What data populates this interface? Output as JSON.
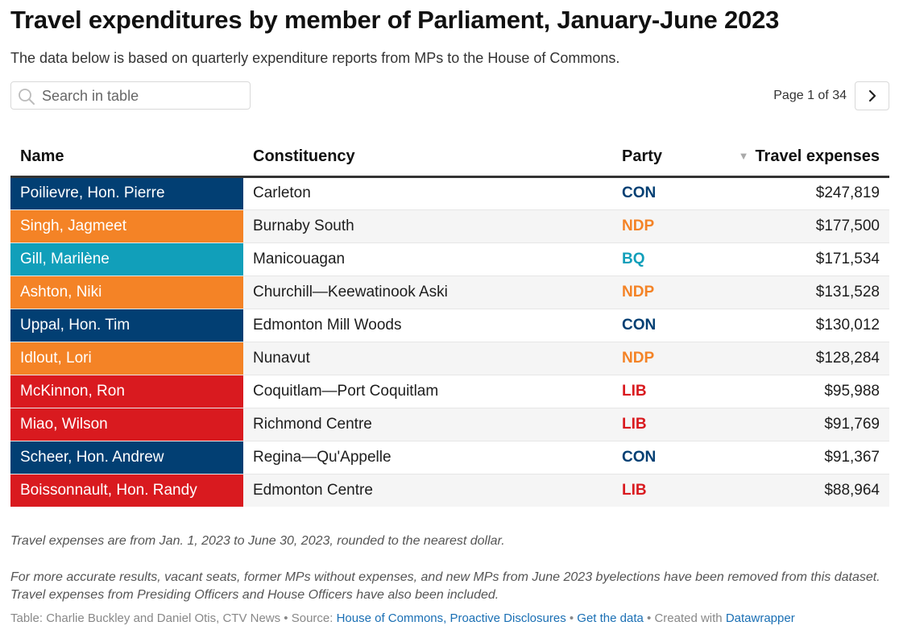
{
  "title": "Travel expenditures by member of Parliament, January-June 2023",
  "subtitle": "The data below is based on quarterly expenditure reports from MPs to the House of Commons.",
  "search": {
    "placeholder": "Search in table",
    "value": ""
  },
  "pagination": {
    "text": "Page 1 of 34",
    "current": 1,
    "total": 34
  },
  "columns": {
    "name": "Name",
    "constituency": "Constituency",
    "party": "Party",
    "expenses": "Travel expenses"
  },
  "sort": {
    "column": "expenses",
    "direction": "descending",
    "icon": "triangle-down-icon"
  },
  "party_colors": {
    "CON": "#023f73",
    "NDP": "#f48326",
    "BQ": "#119fba",
    "LIB": "#d91a1f"
  },
  "rows": [
    {
      "name": "Poilievre, Hon. Pierre",
      "constituency": "Carleton",
      "party": "CON",
      "expenses": "$247,819"
    },
    {
      "name": "Singh, Jagmeet",
      "constituency": "Burnaby South",
      "party": "NDP",
      "expenses": "$177,500"
    },
    {
      "name": "Gill, Marilène",
      "constituency": "Manicouagan",
      "party": "BQ",
      "expenses": "$171,534"
    },
    {
      "name": "Ashton, Niki",
      "constituency": "Churchill—Keewatinook Aski",
      "party": "NDP",
      "expenses": "$131,528"
    },
    {
      "name": "Uppal, Hon. Tim",
      "constituency": "Edmonton Mill Woods",
      "party": "CON",
      "expenses": "$130,012"
    },
    {
      "name": "Idlout, Lori",
      "constituency": "Nunavut",
      "party": "NDP",
      "expenses": "$128,284"
    },
    {
      "name": "McKinnon, Ron",
      "constituency": "Coquitlam—Port Coquitlam",
      "party": "LIB",
      "expenses": "$95,988"
    },
    {
      "name": "Miao, Wilson",
      "constituency": "Richmond Centre",
      "party": "LIB",
      "expenses": "$91,769"
    },
    {
      "name": "Scheer, Hon. Andrew",
      "constituency": "Regina—Qu'Appelle",
      "party": "CON",
      "expenses": "$91,367"
    },
    {
      "name": "Boissonnault, Hon. Randy",
      "constituency": "Edmonton Centre",
      "party": "LIB",
      "expenses": "$88,964"
    }
  ],
  "notes": [
    "Travel expenses are from Jan. 1, 2023 to June 30, 2023, rounded to the nearest dollar.",
    "For more accurate results, vacant seats, former MPs without expenses, and new MPs from June 2023 byelections have been removed from this dataset. Travel expenses from Presiding Officers and House Officers have also been included."
  ],
  "byline": {
    "prefix": "Table: Charlie Buckley and Daniel Otis, CTV News • Source: ",
    "source_link": "House of Commons, Proactive Disclosures",
    "sep1": " • ",
    "data_link": "Get the data",
    "sep2": " • Created with ",
    "tool_link": "Datawrapper"
  }
}
